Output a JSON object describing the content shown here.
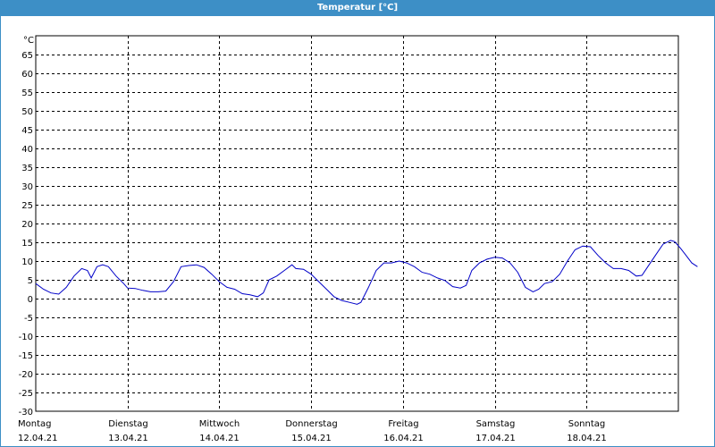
{
  "chart_data": {
    "type": "line",
    "title": "Temperatur [°C]",
    "ylabel": "°C",
    "ylim": [
      -30,
      70
    ],
    "yticks": [
      65,
      60,
      55,
      50,
      45,
      40,
      35,
      30,
      25,
      20,
      15,
      10,
      5,
      0,
      -5,
      -10,
      -15,
      -20,
      -25,
      -30
    ],
    "xlim": [
      "2021-04-12T00:00",
      "2021-04-19T00:00"
    ],
    "grid": true,
    "days": [
      {
        "weekday": "Montag",
        "date": "12.04.21"
      },
      {
        "weekday": "Dienstag",
        "date": "13.04.21"
      },
      {
        "weekday": "Mittwoch",
        "date": "14.04.21"
      },
      {
        "weekday": "Donnerstag",
        "date": "15.04.21"
      },
      {
        "weekday": "Freitag",
        "date": "16.04.21"
      },
      {
        "weekday": "Samstag",
        "date": "17.04.21"
      },
      {
        "weekday": "Sonntag",
        "date": "18.04.21"
      }
    ],
    "series": [
      {
        "color": "#0000c8",
        "points": [
          [
            "2021-04-12T00:00",
            4
          ],
          [
            "2021-04-12T02:00",
            2.5
          ],
          [
            "2021-04-12T04:00",
            1.5
          ],
          [
            "2021-04-12T06:00",
            1.2
          ],
          [
            "2021-04-12T08:00",
            3
          ],
          [
            "2021-04-12T10:00",
            6
          ],
          [
            "2021-04-12T12:00",
            8
          ],
          [
            "2021-04-12T13:30",
            7.5
          ],
          [
            "2021-04-12T14:30",
            5.5
          ],
          [
            "2021-04-12T16:00",
            8.5
          ],
          [
            "2021-04-12T17:30",
            9
          ],
          [
            "2021-04-12T19:00",
            8.5
          ],
          [
            "2021-04-12T21:00",
            6
          ],
          [
            "2021-04-12T23:00",
            4
          ],
          [
            "2021-04-13T00:00",
            2.8
          ],
          [
            "2021-04-13T02:00",
            2.7
          ],
          [
            "2021-04-13T04:00",
            2.2
          ],
          [
            "2021-04-13T06:00",
            1.8
          ],
          [
            "2021-04-13T08:00",
            1.8
          ],
          [
            "2021-04-13T10:00",
            2
          ],
          [
            "2021-04-13T12:00",
            4.5
          ],
          [
            "2021-04-13T14:00",
            8.5
          ],
          [
            "2021-04-13T16:00",
            8.8
          ],
          [
            "2021-04-13T18:00",
            9
          ],
          [
            "2021-04-13T20:00",
            8.3
          ],
          [
            "2021-04-13T22:00",
            6.5
          ],
          [
            "2021-04-14T00:00",
            4.5
          ],
          [
            "2021-04-14T02:00",
            3
          ],
          [
            "2021-04-14T04:00",
            2.5
          ],
          [
            "2021-04-14T06:00",
            1.3
          ],
          [
            "2021-04-14T08:00",
            1
          ],
          [
            "2021-04-14T10:00",
            0.5
          ],
          [
            "2021-04-14T11:30",
            1.5
          ],
          [
            "2021-04-14T13:00",
            5
          ],
          [
            "2021-04-14T15:00",
            6
          ],
          [
            "2021-04-14T17:00",
            7.5
          ],
          [
            "2021-04-14T19:00",
            9
          ],
          [
            "2021-04-14T20:00",
            8
          ],
          [
            "2021-04-14T22:00",
            7.8
          ],
          [
            "2021-04-15T00:00",
            6.5
          ],
          [
            "2021-04-15T02:00",
            4.5
          ],
          [
            "2021-04-15T04:00",
            2.5
          ],
          [
            "2021-04-15T06:00",
            0.5
          ],
          [
            "2021-04-15T08:00",
            -0.5
          ],
          [
            "2021-04-15T10:00",
            -1
          ],
          [
            "2021-04-15T12:00",
            -1.5
          ],
          [
            "2021-04-15T13:00",
            -1
          ],
          [
            "2021-04-15T15:00",
            3
          ],
          [
            "2021-04-15T17:00",
            7.5
          ],
          [
            "2021-04-15T19:00",
            9.5
          ],
          [
            "2021-04-15T21:00",
            9.5
          ],
          [
            "2021-04-15T23:00",
            10
          ],
          [
            "2021-04-16T01:00",
            9.5
          ],
          [
            "2021-04-16T03:00",
            8.5
          ],
          [
            "2021-04-16T05:00",
            7
          ],
          [
            "2021-04-16T07:00",
            6.5
          ],
          [
            "2021-04-16T09:00",
            5.5
          ],
          [
            "2021-04-16T11:00",
            4.8
          ],
          [
            "2021-04-16T13:00",
            3.2
          ],
          [
            "2021-04-16T15:00",
            2.8
          ],
          [
            "2021-04-16T16:30",
            3.5
          ],
          [
            "2021-04-16T18:00",
            7.5
          ],
          [
            "2021-04-16T20:00",
            9.5
          ],
          [
            "2021-04-16T22:00",
            10.5
          ],
          [
            "2021-04-17T00:00",
            11
          ],
          [
            "2021-04-17T02:00",
            10.8
          ],
          [
            "2021-04-17T04:00",
            9.5
          ],
          [
            "2021-04-17T06:00",
            7
          ],
          [
            "2021-04-17T08:00",
            3
          ],
          [
            "2021-04-17T10:00",
            1.8
          ],
          [
            "2021-04-17T11:30",
            2.5
          ],
          [
            "2021-04-17T13:00",
            4
          ],
          [
            "2021-04-17T15:00",
            4.5
          ],
          [
            "2021-04-17T17:00",
            6.5
          ],
          [
            "2021-04-17T19:00",
            10
          ],
          [
            "2021-04-17T21:00",
            13
          ],
          [
            "2021-04-17T23:00",
            14
          ],
          [
            "2021-04-18T01:00",
            13.8
          ],
          [
            "2021-04-18T03:00",
            11.5
          ],
          [
            "2021-04-18T05:00",
            9.5
          ],
          [
            "2021-04-18T07:00",
            8
          ],
          [
            "2021-04-18T09:00",
            8
          ],
          [
            "2021-04-18T11:00",
            7.5
          ],
          [
            "2021-04-18T13:00",
            6
          ],
          [
            "2021-04-18T14:30",
            6.2
          ],
          [
            "2021-04-18T16:00",
            8.5
          ],
          [
            "2021-04-18T18:00",
            11.5
          ],
          [
            "2021-04-18T20:00",
            14.5
          ],
          [
            "2021-04-18T22:00",
            15.5
          ],
          [
            "2021-04-18T23:00",
            15.2
          ],
          [
            "2021-04-19T00:30",
            13.5
          ],
          [
            "2021-04-19T02:00",
            11.5
          ],
          [
            "2021-04-19T03:30",
            9.5
          ],
          [
            "2021-04-19T05:00",
            8.5
          ]
        ]
      }
    ]
  }
}
